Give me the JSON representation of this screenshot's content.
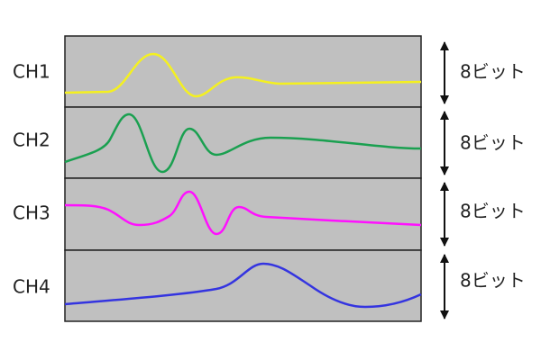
{
  "channels": [
    {
      "label": "CH1",
      "bits": "8ビット"
    },
    {
      "label": "CH2",
      "bits": "8ビット"
    },
    {
      "label": "CH3",
      "bits": "8ビット"
    },
    {
      "label": "CH4",
      "bits": "8ビット"
    }
  ]
}
